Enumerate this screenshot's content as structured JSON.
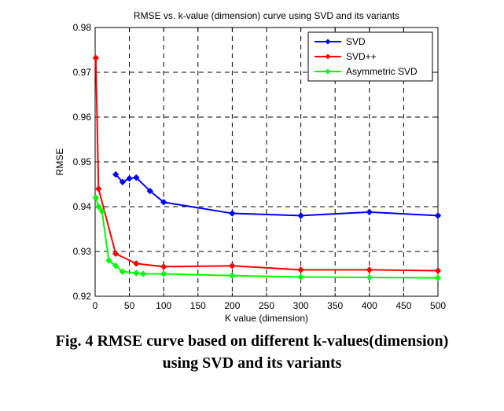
{
  "chart_data": {
    "type": "line",
    "title": "RMSE vs. k-value (dimension) curve using SVD and its variants",
    "xlabel": "K value (dimension)",
    "ylabel": "RMSE",
    "xlim": [
      0,
      500
    ],
    "ylim": [
      0.92,
      0.98
    ],
    "xticks": [
      0,
      50,
      100,
      150,
      200,
      250,
      300,
      350,
      400,
      450,
      500
    ],
    "yticks": [
      0.92,
      0.93,
      0.94,
      0.95,
      0.96,
      0.97,
      0.98
    ],
    "xtick_labels": [
      "0",
      "50",
      "100",
      "150",
      "200",
      "250",
      "300",
      "350",
      "400",
      "450",
      "500"
    ],
    "ytick_labels": [
      "0.92",
      "0.93",
      "0.94",
      "0.95",
      "0.96",
      "0.97",
      "0.98"
    ],
    "grid": true,
    "legend_position": "top-right",
    "series": [
      {
        "name": "SVD",
        "color": "#0000ff",
        "x": [
          30,
          40,
          50,
          60,
          80,
          100,
          200,
          300,
          400,
          500
        ],
        "y": [
          0.9472,
          0.9455,
          0.9463,
          0.9465,
          0.9435,
          0.941,
          0.9385,
          0.938,
          0.9388,
          0.938
        ]
      },
      {
        "name": "SVD++",
        "color": "#ff0000",
        "x": [
          1,
          5,
          30,
          60,
          100,
          200,
          300,
          400,
          500
        ],
        "y": [
          0.9732,
          0.944,
          0.9295,
          0.9273,
          0.9266,
          0.9268,
          0.9259,
          0.9259,
          0.9257
        ]
      },
      {
        "name": "Asymmetric SVD",
        "color": "#00ff00",
        "x": [
          1,
          5,
          10,
          20,
          30,
          40,
          60,
          70,
          100,
          200,
          300,
          400,
          500
        ],
        "y": [
          0.942,
          0.94,
          0.939,
          0.928,
          0.9268,
          0.9255,
          0.9252,
          0.925,
          0.925,
          0.9246,
          0.9243,
          0.9242,
          0.9241
        ]
      }
    ]
  },
  "caption": {
    "line1": "Fig. 4 RMSE curve based on different k-values(dimension)",
    "line2": "using SVD and its variants"
  }
}
